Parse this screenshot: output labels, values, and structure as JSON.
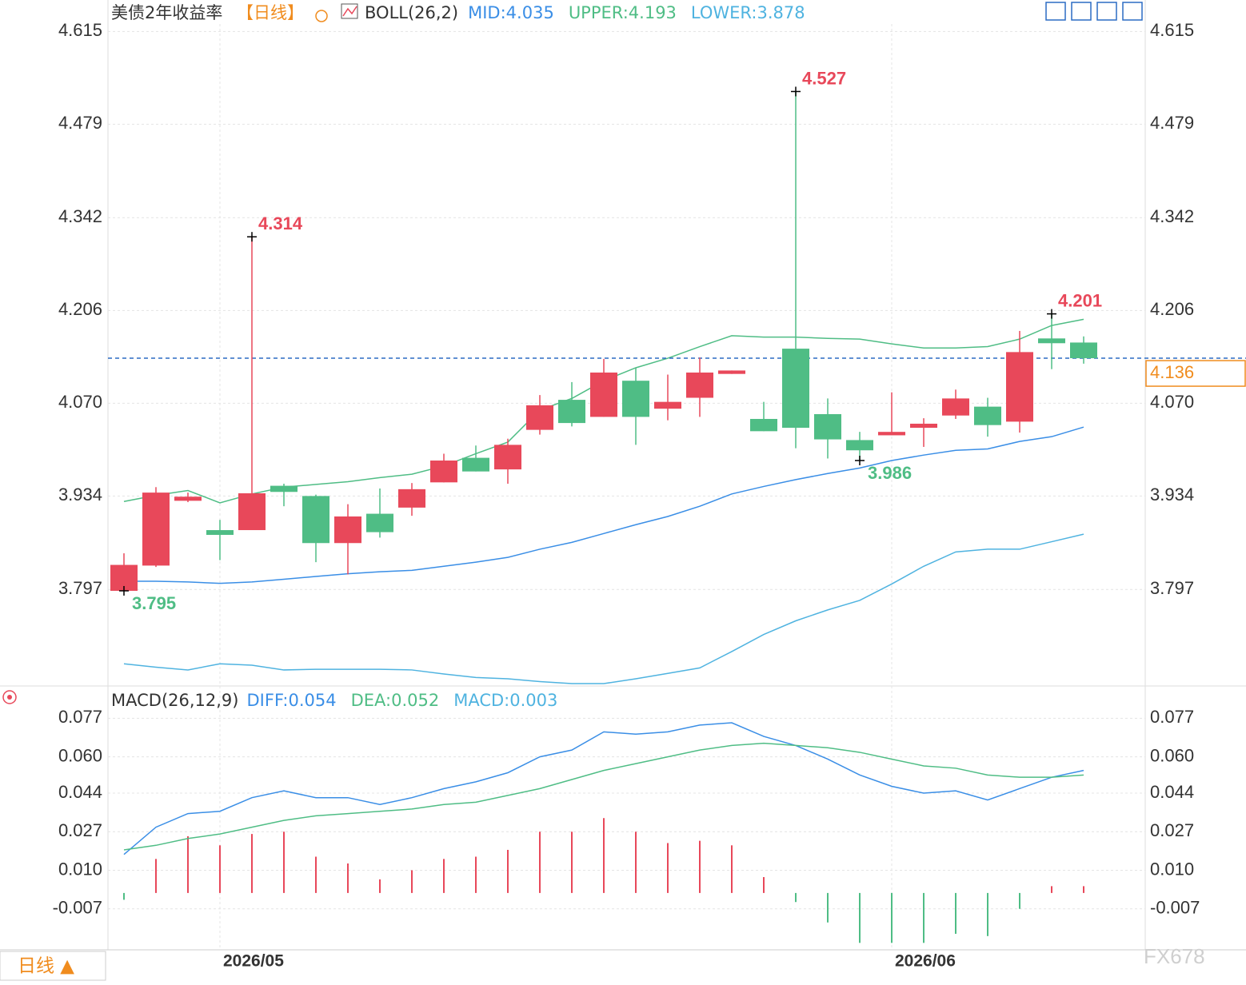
{
  "chart_data": [
    {
      "type": "candlestick",
      "title": "美债2年收益率",
      "period": "【日线】",
      "indicator": "BOLL(26,2)",
      "categories": [
        null,
        null,
        null,
        "2026/05",
        null,
        null,
        null,
        null,
        null,
        null,
        null,
        null,
        null,
        null,
        null,
        null,
        null,
        null,
        null,
        null,
        null,
        null,
        null,
        null,
        "2026/06",
        null,
        null,
        null,
        null,
        null,
        null
      ],
      "open": [
        3.795,
        3.832,
        3.927,
        3.884,
        3.884,
        3.949,
        3.934,
        3.865,
        3.908,
        3.917,
        3.954,
        3.99,
        3.973,
        4.031,
        4.075,
        4.05,
        4.103,
        4.062,
        4.078,
        4.113,
        4.047,
        4.15,
        4.054,
        4.016,
        4.023,
        4.034,
        4.052,
        4.065,
        4.043,
        4.165,
        4.159
      ],
      "high": [
        3.85,
        3.947,
        3.939,
        3.899,
        4.314,
        3.952,
        3.936,
        3.922,
        3.945,
        3.953,
        3.996,
        4.008,
        4.018,
        4.082,
        4.101,
        4.135,
        4.122,
        4.112,
        4.137,
        4.118,
        4.072,
        4.527,
        4.077,
        4.028,
        4.086,
        4.048,
        4.09,
        4.078,
        4.176,
        4.201,
        4.168
      ],
      "low": [
        3.795,
        3.83,
        3.925,
        3.84,
        3.884,
        3.919,
        3.837,
        3.819,
        3.873,
        3.905,
        3.954,
        3.97,
        3.952,
        4.024,
        4.036,
        4.05,
        4.009,
        4.045,
        4.05,
        4.113,
        4.029,
        4.004,
        3.989,
        3.986,
        4.023,
        4.006,
        4.047,
        4.021,
        4.027,
        4.12,
        4.128
      ],
      "close": [
        3.833,
        3.939,
        3.933,
        3.877,
        3.938,
        3.94,
        3.865,
        3.904,
        3.881,
        3.944,
        3.986,
        3.97,
        4.009,
        4.067,
        4.041,
        4.115,
        4.05,
        4.072,
        4.115,
        4.118,
        4.029,
        4.034,
        4.017,
        4.001,
        4.028,
        4.04,
        4.077,
        4.038,
        4.145,
        4.158,
        4.136
      ],
      "up_color": "#e8485a",
      "down_color": "#4fbd85",
      "series": [
        {
          "name": "MID",
          "label": "MID:4.035",
          "color": "#3a8ee6",
          "values": [
            3.809,
            3.809,
            3.808,
            3.806,
            3.808,
            3.812,
            3.816,
            3.82,
            3.823,
            3.825,
            3.831,
            3.837,
            3.844,
            3.856,
            3.866,
            3.879,
            3.892,
            3.904,
            3.919,
            3.937,
            3.948,
            3.958,
            3.967,
            3.975,
            3.986,
            3.994,
            4.001,
            4.003,
            4.014,
            4.021,
            4.035
          ]
        },
        {
          "name": "UPPER",
          "label": "UPPER:4.193",
          "color": "#4fbd85",
          "values": [
            3.926,
            3.935,
            3.942,
            3.924,
            3.937,
            3.947,
            3.951,
            3.955,
            3.961,
            3.966,
            3.978,
            3.996,
            4.013,
            4.06,
            4.077,
            4.103,
            4.122,
            4.136,
            4.153,
            4.169,
            4.167,
            4.167,
            4.165,
            4.164,
            4.157,
            4.151,
            4.151,
            4.153,
            4.164,
            4.184,
            4.193
          ]
        },
        {
          "name": "LOWER",
          "label": "LOWER:3.878",
          "color": "#4fb3e0",
          "values": [
            3.688,
            3.683,
            3.679,
            3.688,
            3.686,
            3.679,
            3.68,
            3.68,
            3.68,
            3.679,
            3.673,
            3.668,
            3.666,
            3.662,
            3.659,
            3.659,
            3.666,
            3.674,
            3.682,
            3.706,
            3.731,
            3.751,
            3.767,
            3.781,
            3.805,
            3.831,
            3.852,
            3.856,
            3.856,
            3.867,
            3.878
          ]
        }
      ],
      "high_labels": [
        4.314,
        4.527,
        4.201
      ],
      "low_labels": [
        3.795,
        3.986
      ],
      "last_price": 4.136,
      "ylim": [
        3.659,
        4.626
      ],
      "yticks": [
        4.615,
        4.479,
        4.342,
        4.206,
        {
          "value": 4.07,
          "label": "4.070"
        },
        3.934,
        3.797
      ],
      "grid": true
    },
    {
      "type": "macd",
      "indicator": "MACD(26,12,9)",
      "series": [
        {
          "name": "DIFF",
          "label": "DIFF:0.054",
          "color": "#3a8ee6",
          "values": [
            0.017,
            0.029,
            0.035,
            0.036,
            0.042,
            0.045,
            0.042,
            0.042,
            0.039,
            0.042,
            0.046,
            0.049,
            0.053,
            0.06,
            0.063,
            0.071,
            0.07,
            0.071,
            0.074,
            0.075,
            0.069,
            0.065,
            0.059,
            0.052,
            0.047,
            0.044,
            0.045,
            0.041,
            0.046,
            0.051,
            0.054
          ]
        },
        {
          "name": "DEA",
          "label": "DEA:0.052",
          "color": "#4fbd85",
          "values": [
            0.019,
            0.021,
            0.024,
            0.026,
            0.029,
            0.032,
            0.034,
            0.035,
            0.036,
            0.037,
            0.039,
            0.04,
            0.043,
            0.046,
            0.05,
            0.054,
            0.057,
            0.06,
            0.063,
            0.065,
            0.066,
            0.065,
            0.064,
            0.062,
            0.059,
            0.056,
            0.055,
            0.052,
            0.051,
            0.051,
            0.052
          ]
        },
        {
          "name": "MACD",
          "label": "MACD:0.003",
          "color": "#4fb3e0",
          "values": [
            -0.003,
            0.015,
            0.025,
            0.021,
            0.026,
            0.027,
            0.016,
            0.013,
            0.006,
            0.01,
            0.015,
            0.016,
            0.019,
            0.027,
            0.027,
            0.033,
            0.027,
            0.022,
            0.023,
            0.021,
            0.007,
            -0.004,
            -0.013,
            -0.022,
            -0.022,
            -0.022,
            -0.018,
            -0.019,
            -0.007,
            0.003,
            0.003
          ]
        }
      ],
      "ylim": [
        -0.024,
        0.087
      ],
      "yticks": [
        0.077,
        {
          "value": 0.06,
          "label": "0.060"
        },
        0.044,
        0.027,
        {
          "value": 0.01,
          "label": "0.010"
        },
        -0.007
      ],
      "grid": true
    }
  ],
  "footer": {
    "period_button": "日线 ▲",
    "watermark": "FX678"
  }
}
